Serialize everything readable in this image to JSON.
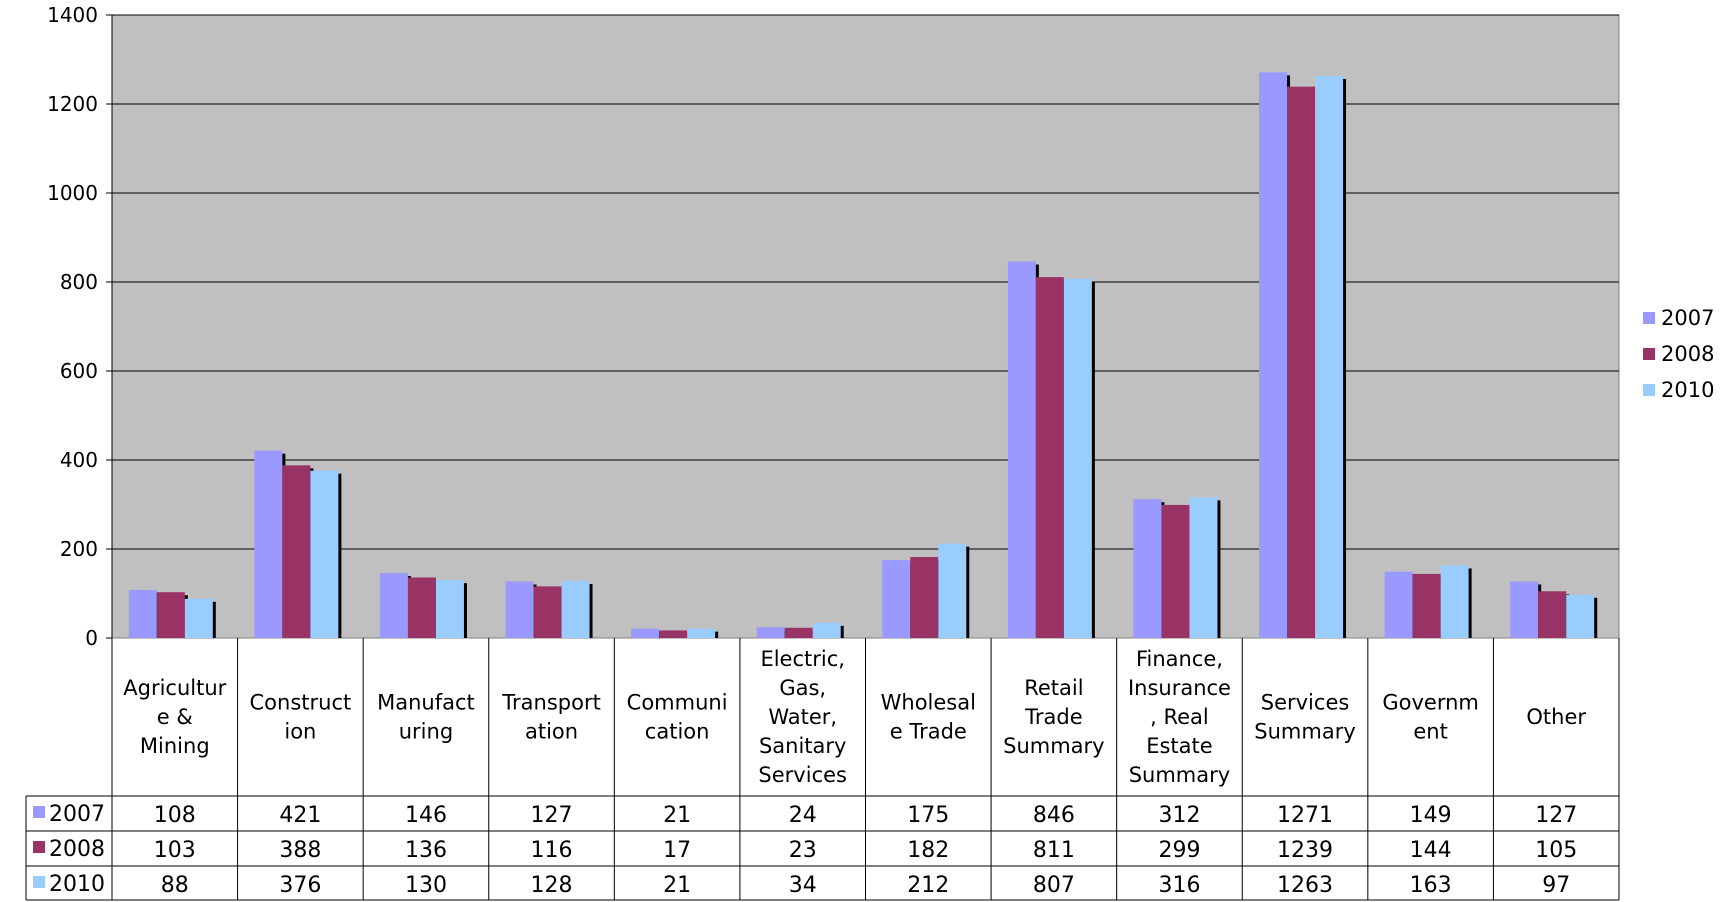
{
  "chart_data": {
    "type": "bar",
    "title": "",
    "xlabel": "",
    "ylabel": "",
    "ylim": [
      0,
      1400
    ],
    "yticks": [
      0,
      200,
      400,
      600,
      800,
      1000,
      1200,
      1400
    ],
    "grid": true,
    "legend_position": "right",
    "plot_background": "#c0c0c0",
    "categories": [
      [
        "Agricultur",
        "e &",
        "Mining"
      ],
      [
        "Construct",
        "ion"
      ],
      [
        "Manufact",
        "uring"
      ],
      [
        "Transport",
        "ation"
      ],
      [
        "Communi",
        "cation"
      ],
      [
        "Electric,",
        "Gas,",
        "Water,",
        "Sanitary",
        "Services"
      ],
      [
        "Wholesal",
        "e Trade"
      ],
      [
        "Retail",
        "Trade",
        "Summary"
      ],
      [
        "Finance,",
        "Insurance",
        ", Real",
        "Estate",
        "Summary"
      ],
      [
        "Services",
        "Summary"
      ],
      [
        "Governm",
        "ent"
      ],
      [
        "Other"
      ]
    ],
    "series": [
      {
        "name": "2007",
        "color": "#9999ff",
        "values": [
          108,
          421,
          146,
          127,
          21,
          24,
          175,
          846,
          312,
          1271,
          149,
          127
        ]
      },
      {
        "name": "2008",
        "color": "#993366",
        "values": [
          103,
          388,
          136,
          116,
          17,
          23,
          182,
          811,
          299,
          1239,
          144,
          105
        ]
      },
      {
        "name": "2010",
        "color": "#99ccff",
        "values": [
          88,
          376,
          130,
          128,
          21,
          34,
          212,
          807,
          316,
          1263,
          163,
          97
        ]
      }
    ],
    "data_table": true
  }
}
